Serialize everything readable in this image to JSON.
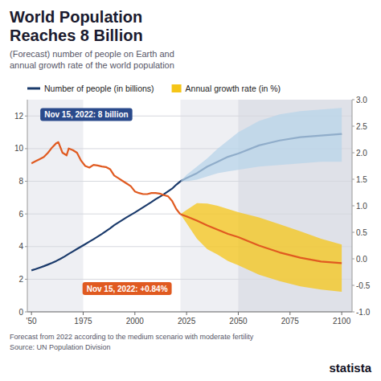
{
  "chart_data": {
    "type": "line",
    "title": "World Population\nReaches 8 Billion",
    "subtitle": "(Forecast) number of people on Earth and\nannual growth rate of the world population",
    "footnote": "Forecast from 2022 according to the medium scenario with moderate fertility\nSource: UN Population Division",
    "logo": "statista",
    "legend": "top",
    "grid": true,
    "xlim": [
      1948,
      2105
    ],
    "xticks": [
      {
        "value": 1950,
        "label": "'50"
      },
      1975,
      2000,
      2025,
      2050,
      2075,
      2100
    ],
    "ylim": [
      0,
      13
    ],
    "yticks": [
      0,
      2,
      4,
      6,
      8,
      10,
      12
    ],
    "y2lim": [
      -1.0,
      3.0
    ],
    "y2ticks": [
      {
        "value": -1.0,
        "label": "-1.0"
      },
      -0.5,
      {
        "value": 0.0,
        "label": "0.0"
      },
      0.5,
      {
        "value": 1.0,
        "label": "1.0"
      },
      1.5,
      {
        "value": 2.0,
        "label": "2.0"
      },
      2.5,
      {
        "value": 3.0,
        "label": "3.0"
      }
    ],
    "x_spans": [
      [
        1948,
        1975
      ],
      [
        2022,
        2105
      ],
      [
        2050,
        2105
      ]
    ],
    "series": [
      {
        "name": "Number of people (in billions)",
        "type": "line",
        "color": "#1a3a6b",
        "x": [
          1950,
          1952,
          1954,
          1956,
          1958,
          1960,
          1962,
          1964,
          1966,
          1968,
          1970,
          1972,
          1974,
          1976,
          1978,
          1980,
          1982,
          1984,
          1986,
          1988,
          1990,
          1992,
          1994,
          1996,
          1998,
          2000,
          2002,
          2004,
          2006,
          2008,
          2010,
          2012,
          2014,
          2016,
          2018,
          2020,
          2022,
          2025,
          2030,
          2035,
          2040,
          2045,
          2050,
          2060,
          2070,
          2080,
          2090,
          2100
        ],
        "values": [
          2.54,
          2.62,
          2.71,
          2.8,
          2.9,
          3.0,
          3.12,
          3.25,
          3.39,
          3.55,
          3.7,
          3.85,
          4.0,
          4.15,
          4.3,
          4.45,
          4.61,
          4.77,
          4.94,
          5.12,
          5.31,
          5.47,
          5.63,
          5.79,
          5.94,
          6.09,
          6.25,
          6.41,
          6.57,
          6.73,
          6.9,
          7.05,
          7.21,
          7.38,
          7.55,
          7.79,
          8.0,
          8.2,
          8.5,
          8.9,
          9.2,
          9.5,
          9.7,
          10.2,
          10.5,
          10.7,
          10.8,
          10.9
        ]
      },
      {
        "type": "area",
        "color": "#b8d4ea",
        "x": [
          2022,
          2025,
          2030,
          2035,
          2040,
          2045,
          2050,
          2060,
          2070,
          2080,
          2090,
          2100
        ],
        "low": [
          8.0,
          8.0,
          8.1,
          8.3,
          8.5,
          8.6,
          8.7,
          8.9,
          9.0,
          9.1,
          9.2,
          9.2
        ],
        "high": [
          8.0,
          8.4,
          8.9,
          9.4,
          10.0,
          10.5,
          11.0,
          11.7,
          12.1,
          12.3,
          12.4,
          12.5
        ]
      },
      {
        "name": "Annual growth rate (in %)",
        "type": "area",
        "color": "#f5c518",
        "axis": "y2",
        "x": [
          2022,
          2025,
          2030,
          2035,
          2040,
          2045,
          2050,
          2060,
          2070,
          2080,
          2090,
          2100
        ],
        "low": [
          0.84,
          0.67,
          0.38,
          0.18,
          0.08,
          -0.04,
          -0.12,
          -0.3,
          -0.42,
          -0.52,
          -0.58,
          -0.62
        ],
        "high": [
          0.84,
          0.92,
          1.05,
          1.04,
          1.0,
          0.94,
          0.88,
          0.78,
          0.65,
          0.52,
          0.38,
          0.27
        ]
      },
      {
        "type": "line",
        "color": "#e05a20",
        "axis": "y2",
        "x": [
          1950,
          1952,
          1954,
          1956,
          1958,
          1960,
          1962,
          1963,
          1965,
          1967,
          1968,
          1970,
          1972,
          1974,
          1976,
          1978,
          1980,
          1982,
          1984,
          1986,
          1988,
          1990,
          1992,
          1994,
          1996,
          1998,
          2000,
          2002,
          2004,
          2006,
          2008,
          2010,
          2012,
          2014,
          2016,
          2018,
          2020,
          2022
        ],
        "values": [
          1.8,
          1.84,
          1.88,
          1.92,
          2.0,
          2.1,
          2.18,
          2.2,
          2.0,
          1.95,
          2.08,
          2.05,
          2.0,
          1.85,
          1.75,
          1.72,
          1.77,
          1.76,
          1.74,
          1.73,
          1.69,
          1.57,
          1.52,
          1.47,
          1.42,
          1.37,
          1.27,
          1.24,
          1.22,
          1.22,
          1.24,
          1.24,
          1.23,
          1.2,
          1.18,
          1.09,
          0.94,
          0.84
        ]
      },
      {
        "type": "line",
        "color": "#e05a20",
        "axis": "y2",
        "x": [
          2022,
          2025,
          2030,
          2035,
          2040,
          2045,
          2050,
          2060,
          2070,
          2080,
          2090,
          2100
        ],
        "values": [
          0.84,
          0.8,
          0.72,
          0.63,
          0.55,
          0.47,
          0.41,
          0.25,
          0.12,
          0.02,
          -0.05,
          -0.08
        ]
      }
    ],
    "annotations": [
      {
        "text": "Nov 15, 2022: 8 billion",
        "color": "#2a4a8b"
      },
      {
        "text": "Nov 15, 2022: +0.84%",
        "color": "#e05a20"
      }
    ]
  }
}
